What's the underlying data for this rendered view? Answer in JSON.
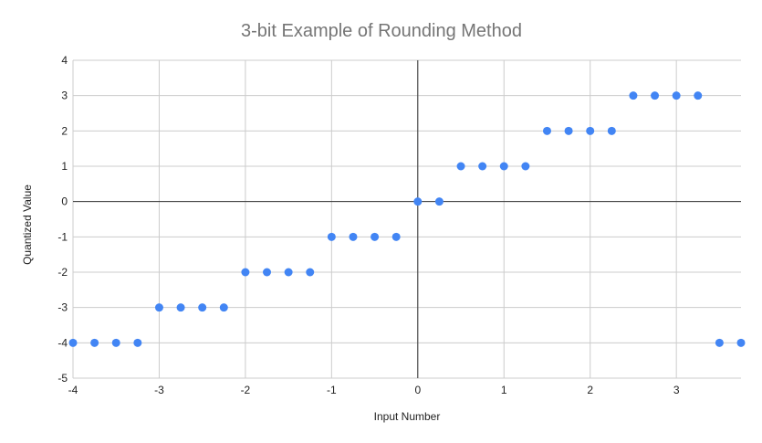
{
  "chart_data": {
    "type": "scatter",
    "title": "3-bit Example of Rounding Method",
    "xlabel": "Input Number",
    "ylabel": "Quantized Value",
    "xlim": [
      -4,
      3.75
    ],
    "ylim": [
      -5,
      4
    ],
    "xticks": [
      -4,
      -3,
      -2,
      -1,
      0,
      1,
      2,
      3
    ],
    "yticks": [
      -5,
      -4,
      -3,
      -2,
      -1,
      0,
      1,
      2,
      3,
      4
    ],
    "grid": true,
    "legend": "none",
    "point_color": "#4285f4",
    "series": [
      {
        "x": [
          -4,
          -3.75,
          -3.5,
          -3.25,
          -3,
          -2.75,
          -2.5,
          -2.25,
          -2,
          -1.75,
          -1.5,
          -1.25,
          -1,
          -0.75,
          -0.5,
          -0.25,
          0,
          0.25,
          0.5,
          0.75,
          1,
          1.25,
          1.5,
          1.75,
          2,
          2.25,
          2.5,
          2.75,
          3,
          3.25,
          3.5,
          3.75
        ],
        "y": [
          -4,
          -4,
          -4,
          -4,
          -3,
          -3,
          -3,
          -3,
          -2,
          -2,
          -2,
          -2,
          -1,
          -1,
          -1,
          -1,
          0,
          0,
          1,
          1,
          1,
          1,
          2,
          2,
          2,
          2,
          3,
          3,
          3,
          3,
          -4,
          -4
        ]
      }
    ]
  }
}
